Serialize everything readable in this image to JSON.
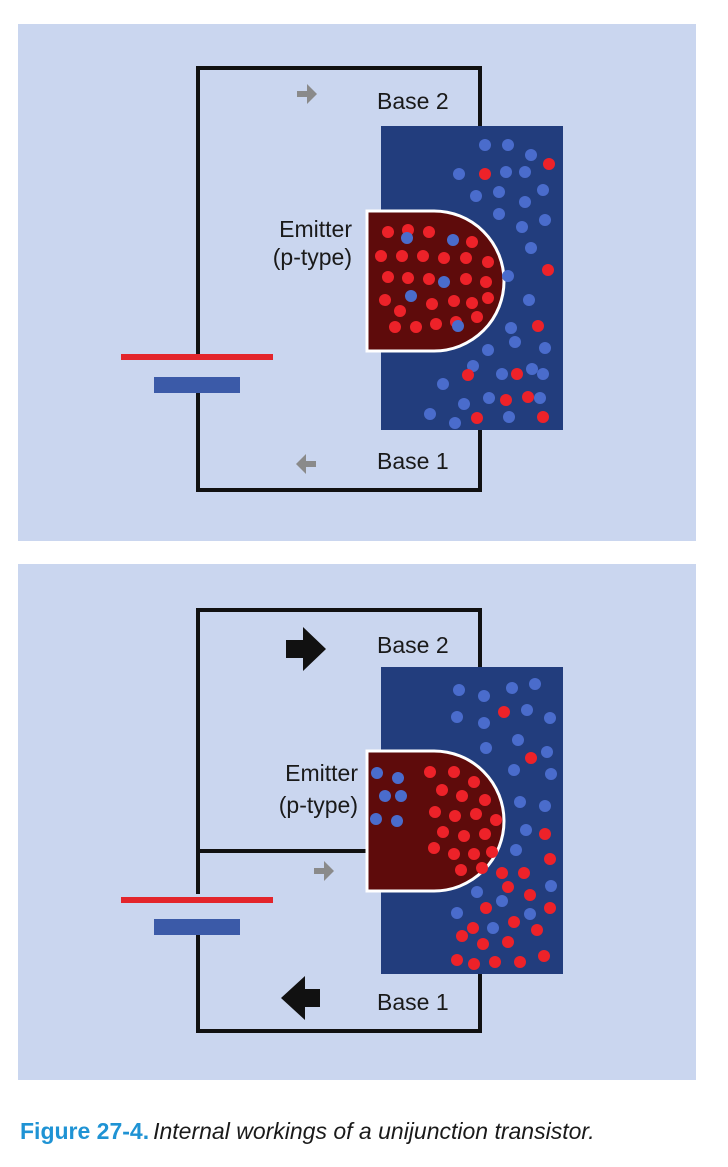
{
  "panels": [
    {
      "base2_label": "Base 2",
      "base1_label": "Base 1",
      "emitter_label_line1": "Emitter",
      "emitter_label_line2": "(p-type)"
    },
    {
      "base2_label": "Base 2",
      "base1_label": "Base 1",
      "emitter_label_line1": "Emitter",
      "emitter_label_line2": "(p-type)"
    }
  ],
  "caption": {
    "figure_number": "Figure 27-4.",
    "text": "Internal workings of a unijunction transistor."
  },
  "colors": {
    "panel_background": "#cad6ef",
    "n_type_base": "#223d7d",
    "p_type_emitter": "#5e0b0b",
    "hole_red": "#ed2229",
    "electron_blue": "#4a6ccc",
    "battery_positive": "#e3252b",
    "battery_negative": "#3b5aa8",
    "caption_accent": "#1f93d4"
  },
  "icons": [
    "arrow-right-icon",
    "arrow-left-icon",
    "battery-icon"
  ]
}
